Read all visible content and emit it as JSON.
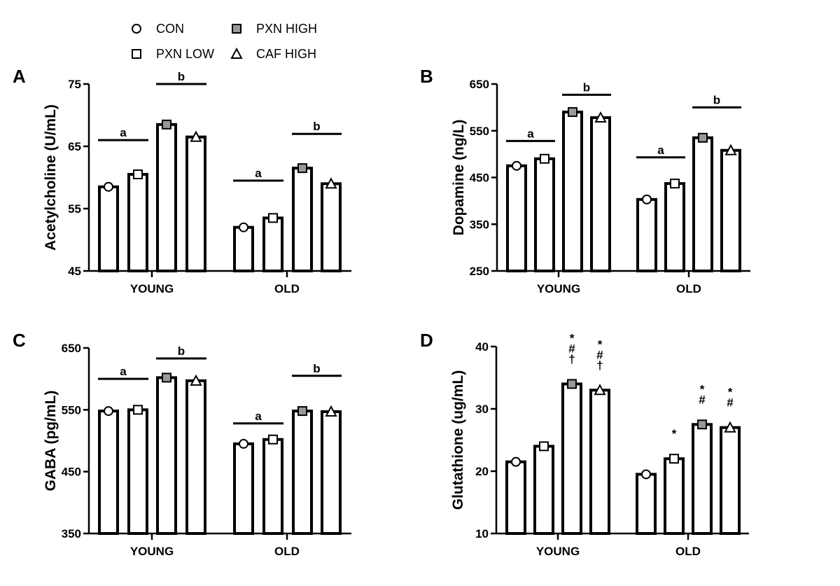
{
  "legend": [
    {
      "name": "CON",
      "marker": "circle",
      "fill": "#ffffff"
    },
    {
      "name": "PXN LOW",
      "marker": "square",
      "fill": "#ffffff"
    },
    {
      "name": "PXN HIGH",
      "marker": "square",
      "fill": "#999999"
    },
    {
      "name": "CAF HIGH",
      "marker": "triangle",
      "fill": "#ffffff"
    }
  ],
  "chart_data": [
    {
      "panel": "A",
      "type": "bar",
      "ylabel": "Acetylcholine (U/mL)",
      "ylim": [
        45,
        75
      ],
      "yticks": [
        "45",
        "55",
        "65",
        "75"
      ],
      "categories": [
        "YOUNG",
        "OLD"
      ],
      "series": [
        {
          "name": "CON",
          "values": [
            58.5,
            52
          ]
        },
        {
          "name": "PXN LOW",
          "values": [
            60.5,
            53.5
          ]
        },
        {
          "name": "PXN HIGH",
          "values": [
            68.5,
            61.5
          ]
        },
        {
          "name": "CAF HIGH",
          "values": [
            66.5,
            59
          ]
        }
      ],
      "significance": [
        {
          "group": "YOUNG",
          "series": [
            "CON",
            "PXN LOW"
          ],
          "label": "a",
          "level": 66
        },
        {
          "group": "YOUNG",
          "series": [
            "PXN HIGH",
            "CAF HIGH"
          ],
          "label": "b",
          "level": 75
        },
        {
          "group": "OLD",
          "series": [
            "CON",
            "PXN LOW"
          ],
          "label": "a",
          "level": 59.5
        },
        {
          "group": "OLD",
          "series": [
            "PXN HIGH",
            "CAF HIGH"
          ],
          "label": "b",
          "level": 67
        }
      ]
    },
    {
      "panel": "B",
      "type": "bar",
      "ylabel": "Dopamine (ng/L)",
      "ylim": [
        250,
        650
      ],
      "yticks": [
        "250",
        "350",
        "450",
        "550",
        "650"
      ],
      "categories": [
        "YOUNG",
        "OLD"
      ],
      "series": [
        {
          "name": "CON",
          "values": [
            475,
            403
          ]
        },
        {
          "name": "PXN LOW",
          "values": [
            490,
            437
          ]
        },
        {
          "name": "PXN HIGH",
          "values": [
            590,
            535
          ]
        },
        {
          "name": "CAF HIGH",
          "values": [
            578,
            508
          ]
        }
      ],
      "significance": [
        {
          "group": "YOUNG",
          "series": [
            "CON",
            "PXN LOW"
          ],
          "label": "a",
          "level": 528
        },
        {
          "group": "YOUNG",
          "series": [
            "PXN HIGH",
            "CAF HIGH"
          ],
          "label": "b",
          "level": 627
        },
        {
          "group": "OLD",
          "series": [
            "CON",
            "PXN LOW"
          ],
          "label": "a",
          "level": 493
        },
        {
          "group": "OLD",
          "series": [
            "PXN HIGH",
            "CAF HIGH"
          ],
          "label": "b",
          "level": 600
        }
      ]
    },
    {
      "panel": "C",
      "type": "bar",
      "ylabel": "GABA (pg/mL)",
      "ylim": [
        350,
        650
      ],
      "yticks": [
        "350",
        "450",
        "550",
        "650"
      ],
      "categories": [
        "YOUNG",
        "OLD"
      ],
      "series": [
        {
          "name": "CON",
          "values": [
            548,
            495
          ]
        },
        {
          "name": "PXN LOW",
          "values": [
            550,
            502
          ]
        },
        {
          "name": "PXN HIGH",
          "values": [
            602,
            548
          ]
        },
        {
          "name": "CAF HIGH",
          "values": [
            597,
            547
          ]
        }
      ],
      "significance": [
        {
          "group": "YOUNG",
          "series": [
            "CON",
            "PXN LOW"
          ],
          "label": "a",
          "level": 600
        },
        {
          "group": "YOUNG",
          "series": [
            "PXN HIGH",
            "CAF HIGH"
          ],
          "label": "b",
          "level": 633
        },
        {
          "group": "OLD",
          "series": [
            "CON",
            "PXN LOW"
          ],
          "label": "a",
          "level": 528
        },
        {
          "group": "OLD",
          "series": [
            "PXN HIGH",
            "CAF HIGH"
          ],
          "label": "b",
          "level": 605
        }
      ]
    },
    {
      "panel": "D",
      "type": "bar",
      "ylabel": "Glutathione (ug/mL)",
      "ylim": [
        10,
        40
      ],
      "yticks": [
        "10",
        "20",
        "30",
        "40"
      ],
      "categories": [
        "YOUNG",
        "OLD"
      ],
      "series": [
        {
          "name": "CON",
          "values": [
            21.5,
            19.5
          ]
        },
        {
          "name": "PXN LOW",
          "values": [
            24,
            22
          ]
        },
        {
          "name": "PXN HIGH",
          "values": [
            34,
            27.5
          ]
        },
        {
          "name": "CAF HIGH",
          "values": [
            33,
            27
          ]
        }
      ],
      "annotations": [
        {
          "group": "YOUNG",
          "series": "PXN HIGH",
          "lines": [
            "*",
            "#",
            "†"
          ]
        },
        {
          "group": "YOUNG",
          "series": "CAF HIGH",
          "lines": [
            "*",
            "#",
            "†"
          ]
        },
        {
          "group": "OLD",
          "series": "PXN LOW",
          "lines": [
            "*"
          ]
        },
        {
          "group": "OLD",
          "series": "PXN HIGH",
          "lines": [
            "*",
            "#"
          ]
        },
        {
          "group": "OLD",
          "series": "CAF HIGH",
          "lines": [
            "*",
            "#"
          ]
        }
      ]
    }
  ]
}
